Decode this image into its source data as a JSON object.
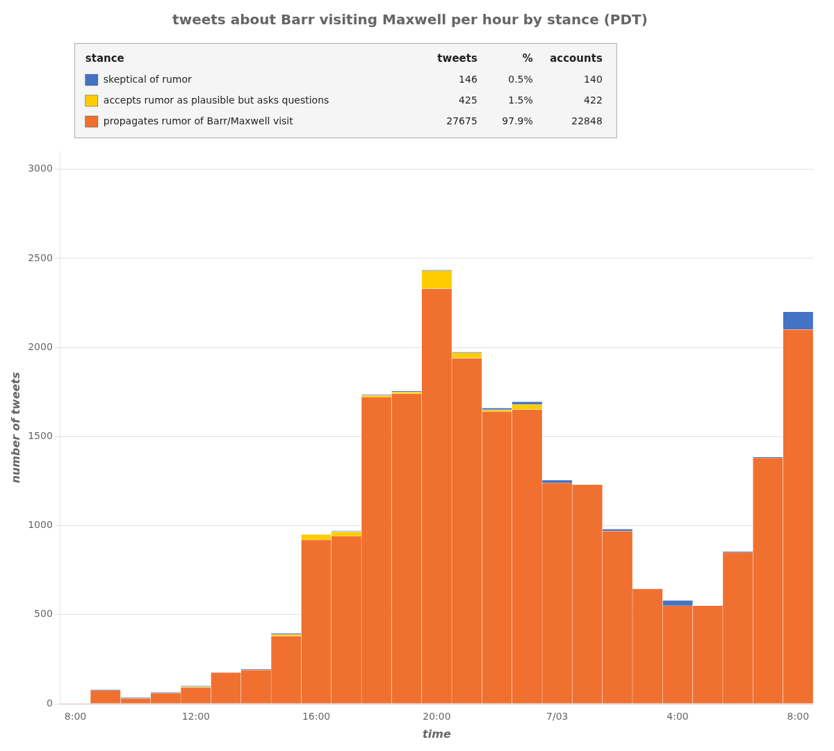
{
  "chart_data": {
    "type": "bar",
    "title": "tweets about Barr visiting Maxwell per hour by stance (PDT)",
    "xlabel": "time",
    "ylabel": "number of tweets",
    "categories": [
      "8:00",
      null,
      null,
      null,
      "12:00",
      null,
      null,
      null,
      "16:00",
      null,
      null,
      null,
      "20:00",
      null,
      null,
      null,
      "7/03",
      null,
      null,
      null,
      "4:00",
      null,
      null,
      null,
      "8:00"
    ],
    "series": [
      {
        "name": "propagates rumor of Barr/Maxwell visit",
        "color": "#F07030",
        "values": [
          2,
          75,
          30,
          60,
          90,
          175,
          190,
          380,
          920,
          940,
          1720,
          1740,
          2330,
          1940,
          1640,
          1650,
          1240,
          1230,
          970,
          645,
          550,
          550,
          850,
          1380,
          2100
        ],
        "tweets": 27675,
        "share": {
          "value": 97.9,
          "label": "97.9%"
        },
        "accounts": 22848
      },
      {
        "name": "accepts rumor as plausible but asks questions",
        "color": "#FFCC00",
        "values": [
          0,
          0,
          0,
          0,
          5,
          0,
          0,
          10,
          30,
          25,
          10,
          10,
          100,
          30,
          10,
          30,
          0,
          0,
          0,
          0,
          0,
          0,
          0,
          0,
          0
        ],
        "tweets": 425,
        "share": {
          "value": 1.5,
          "label": "1.5%"
        },
        "accounts": 422
      },
      {
        "name": "skeptical of rumor",
        "color": "#4472C4",
        "values": [
          0,
          5,
          5,
          5,
          5,
          0,
          5,
          5,
          0,
          5,
          5,
          5,
          5,
          5,
          10,
          15,
          15,
          0,
          10,
          0,
          30,
          0,
          5,
          5,
          100
        ],
        "tweets": 146,
        "share": {
          "value": 0.5,
          "label": "0.5%"
        },
        "accounts": 140
      }
    ],
    "legend_headers": [
      "stance",
      "tweets",
      "%",
      "accounts"
    ],
    "stacked": true,
    "ylim": [
      0,
      3100
    ],
    "yticks": [
      0,
      500,
      1000,
      1500,
      2000,
      2500,
      3000
    ],
    "grid": true,
    "legend": "top"
  }
}
